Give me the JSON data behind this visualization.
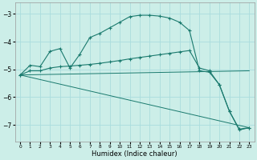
{
  "xlabel": "Humidex (Indice chaleur)",
  "background_color": "#cceee8",
  "grid_color": "#aadddd",
  "line_color": "#1a7a6e",
  "xlim": [
    -0.5,
    23.5
  ],
  "ylim": [
    -7.6,
    -2.6
  ],
  "yticks": [
    -7,
    -6,
    -5,
    -4,
    -3
  ],
  "xticks": [
    0,
    1,
    2,
    3,
    4,
    5,
    6,
    7,
    8,
    9,
    10,
    11,
    12,
    13,
    14,
    15,
    16,
    17,
    18,
    19,
    20,
    21,
    22,
    23
  ],
  "line1_x": [
    0,
    1,
    2,
    3,
    4,
    5,
    6,
    7,
    8,
    9,
    10,
    11,
    12,
    13,
    14,
    15,
    16,
    17,
    18,
    19,
    20,
    21,
    22,
    23
  ],
  "line1_y": [
    -5.2,
    -4.85,
    -4.9,
    -4.35,
    -4.25,
    -4.95,
    -4.45,
    -3.85,
    -3.7,
    -3.5,
    -3.3,
    -3.1,
    -3.05,
    -3.05,
    -3.08,
    -3.15,
    -3.3,
    -3.6,
    -5.05,
    -5.1,
    -5.55,
    -6.5,
    -7.15,
    -7.1
  ],
  "line2_x": [
    0,
    1,
    2,
    3,
    4,
    5,
    6,
    7,
    8,
    9,
    10,
    11,
    12,
    13,
    14,
    15,
    16,
    17,
    18,
    19,
    20,
    21,
    22,
    23
  ],
  "line2_y": [
    -5.2,
    -5.05,
    -5.05,
    -4.95,
    -4.9,
    -4.88,
    -4.85,
    -4.82,
    -4.78,
    -4.73,
    -4.68,
    -4.62,
    -4.57,
    -4.52,
    -4.47,
    -4.42,
    -4.37,
    -4.32,
    -4.95,
    -5.05,
    -5.55,
    -6.5,
    -7.18,
    -7.1
  ],
  "line3_x": [
    0,
    23
  ],
  "line3_y": [
    -5.2,
    -7.1
  ],
  "line4_x": [
    0,
    23
  ],
  "line4_y": [
    -5.2,
    -5.05
  ]
}
